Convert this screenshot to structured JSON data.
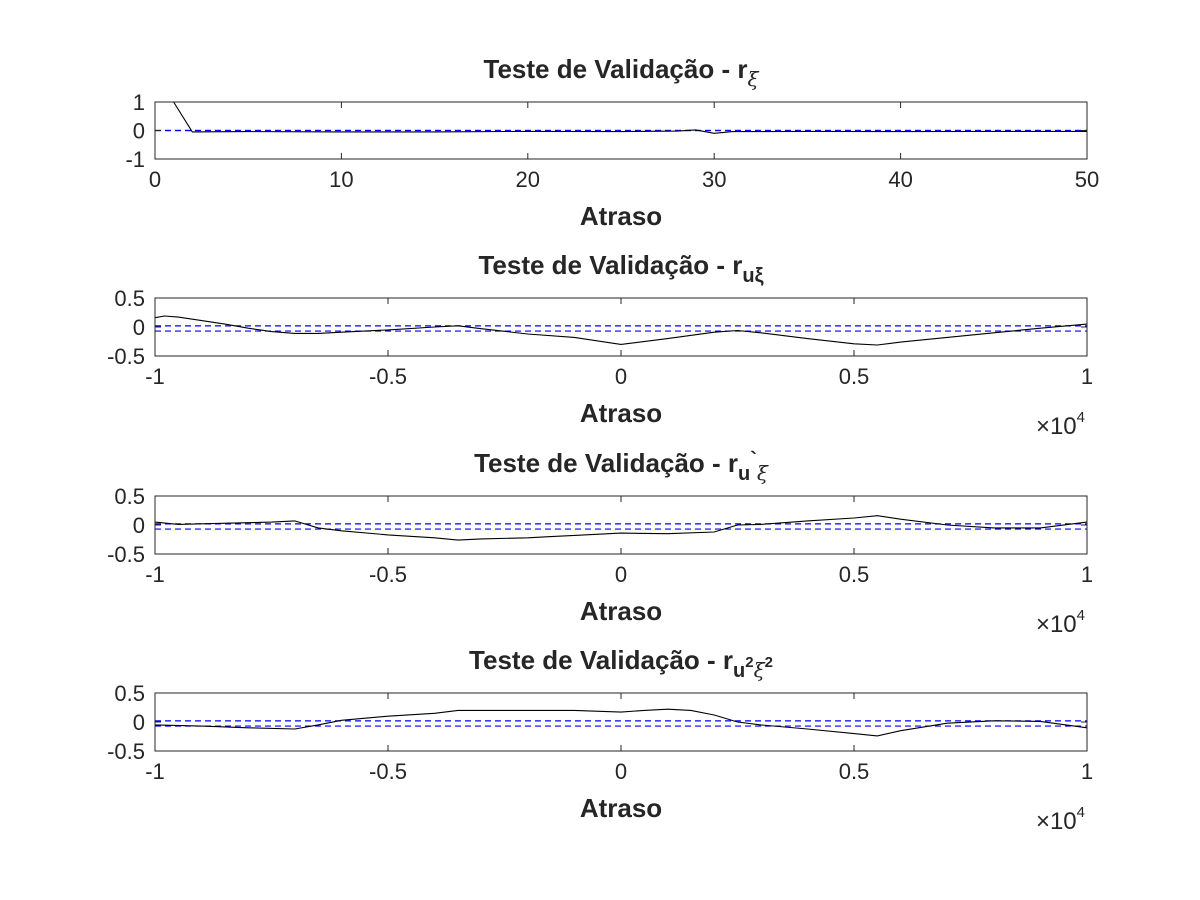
{
  "chart_data": [
    {
      "type": "line",
      "title": {
        "main": "Teste de Validação - r",
        "sub": "ξ"
      },
      "xlabel": "Atraso",
      "xlim": [
        0,
        50
      ],
      "ylim": [
        -1,
        1
      ],
      "xticks": [
        "0",
        "10",
        "20",
        "30",
        "40",
        "50"
      ],
      "xtick_values": [
        0,
        10,
        20,
        30,
        40,
        50
      ],
      "yticks": [
        "-1",
        "0",
        "1"
      ],
      "ytick_values": [
        -1,
        0,
        1
      ],
      "x_multiplier": null,
      "confidence_bounds": [
        0.0,
        0.0
      ],
      "series": [
        {
          "x": [
            0,
            1,
            2,
            5,
            10,
            15,
            20,
            25,
            28,
            29,
            30,
            31,
            35,
            40,
            45,
            50
          ],
          "y": [
            1,
            1,
            -0.05,
            -0.04,
            -0.05,
            -0.05,
            -0.03,
            -0.04,
            -0.02,
            0.02,
            -0.1,
            -0.04,
            -0.03,
            -0.04,
            -0.03,
            -0.03
          ]
        }
      ]
    },
    {
      "type": "line",
      "title": {
        "main": "Teste de Validação - r",
        "sub": "uξ"
      },
      "xlabel": "Atraso",
      "xlim": [
        -10000,
        10000
      ],
      "ylim": [
        -0.5,
        0.5
      ],
      "xticks": [
        "-1",
        "-0.5",
        "0",
        "0.5",
        "1"
      ],
      "xtick_values": [
        -10000,
        -5000,
        0,
        5000,
        10000
      ],
      "yticks": [
        "-0.5",
        "0",
        "0.5"
      ],
      "ytick_values": [
        -0.5,
        0,
        0.5
      ],
      "x_multiplier": {
        "base": "×10",
        "exp": "4"
      },
      "confidence_bounds": [
        -0.07,
        0.02
      ],
      "series": [
        {
          "x": [
            -10000,
            -9800,
            -9500,
            -9000,
            -8500,
            -8000,
            -7500,
            -7000,
            -6500,
            -6000,
            -5000,
            -4000,
            -3500,
            -3000,
            -2000,
            -1000,
            0,
            1000,
            2000,
            2500,
            3000,
            4000,
            5000,
            5500,
            6000,
            7000,
            8000,
            9000,
            10000
          ],
          "y": [
            0.16,
            0.19,
            0.17,
            0.11,
            0.05,
            -0.02,
            -0.08,
            -0.11,
            -0.11,
            -0.09,
            -0.05,
            0.0,
            0.02,
            -0.03,
            -0.12,
            -0.18,
            -0.3,
            -0.2,
            -0.09,
            -0.06,
            -0.1,
            -0.2,
            -0.29,
            -0.31,
            -0.26,
            -0.18,
            -0.1,
            -0.02,
            0.05
          ]
        }
      ]
    },
    {
      "type": "line",
      "title": {
        "main": "Teste de Validação - r",
        "sub": "u",
        "accent": "`",
        "sub2": "ξ"
      },
      "xlabel": "Atraso",
      "xlim": [
        -10000,
        10000
      ],
      "ylim": [
        -0.5,
        0.5
      ],
      "xticks": [
        "-1",
        "-0.5",
        "0",
        "0.5",
        "1"
      ],
      "xtick_values": [
        -10000,
        -5000,
        0,
        5000,
        10000
      ],
      "yticks": [
        "-0.5",
        "0",
        "0.5"
      ],
      "ytick_values": [
        -0.5,
        0,
        0.5
      ],
      "x_multiplier": {
        "base": "×10",
        "exp": "4"
      },
      "confidence_bounds": [
        -0.07,
        0.02
      ],
      "series": [
        {
          "x": [
            -10000,
            -9500,
            -9000,
            -8000,
            -7500,
            -7000,
            -6500,
            -6000,
            -5000,
            -4000,
            -3500,
            -3000,
            -2000,
            -1500,
            -1000,
            0,
            1000,
            2000,
            2500,
            3000,
            4000,
            5000,
            5500,
            6000,
            7000,
            8000,
            9000,
            10000
          ],
          "y": [
            0.05,
            0.01,
            0.02,
            0.04,
            0.05,
            0.07,
            -0.05,
            -0.1,
            -0.17,
            -0.22,
            -0.26,
            -0.24,
            -0.22,
            -0.2,
            -0.18,
            -0.14,
            -0.15,
            -0.12,
            0.0,
            0.01,
            0.07,
            0.12,
            0.16,
            0.1,
            0.0,
            -0.05,
            -0.05,
            0.05
          ]
        }
      ]
    },
    {
      "type": "line",
      "title": {
        "main": "Teste de Validação - r",
        "sub": "u",
        "sup1": "2",
        "sub2": "ξ",
        "sup2": "2"
      },
      "xlabel": "Atraso",
      "xlim": [
        -10000,
        10000
      ],
      "ylim": [
        -0.5,
        0.5
      ],
      "xticks": [
        "-1",
        "-0.5",
        "0",
        "0.5",
        "1"
      ],
      "xtick_values": [
        -10000,
        -5000,
        0,
        5000,
        10000
      ],
      "yticks": [
        "-0.5",
        "0",
        "0.5"
      ],
      "ytick_values": [
        -0.5,
        0,
        0.5
      ],
      "x_multiplier": {
        "base": "×10",
        "exp": "4"
      },
      "confidence_bounds": [
        -0.07,
        0.02
      ],
      "series": [
        {
          "x": [
            -10000,
            -9000,
            -8000,
            -7000,
            -6500,
            -6000,
            -5000,
            -4000,
            -3500,
            -3000,
            -2000,
            -1500,
            -1000,
            0,
            500,
            1000,
            1500,
            2000,
            2500,
            3000,
            4000,
            5000,
            5500,
            6000,
            7000,
            8000,
            9000,
            10000
          ],
          "y": [
            -0.05,
            -0.07,
            -0.1,
            -0.12,
            -0.05,
            0.03,
            0.1,
            0.15,
            0.2,
            0.2,
            0.2,
            0.2,
            0.2,
            0.17,
            0.2,
            0.22,
            0.2,
            0.12,
            0.0,
            -0.05,
            -0.12,
            -0.2,
            -0.24,
            -0.15,
            -0.02,
            0.02,
            0.01,
            -0.1
          ]
        }
      ]
    }
  ]
}
